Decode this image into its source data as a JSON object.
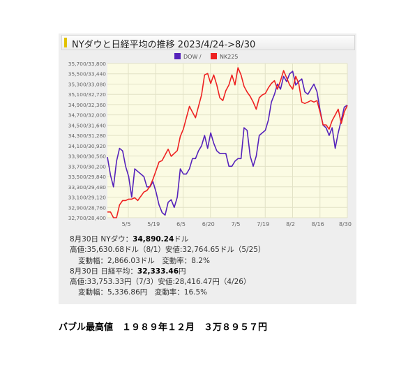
{
  "header": {
    "title": "NYダウと日経平均の推移 2023/4/24->8/30"
  },
  "chart_data": {
    "type": "line",
    "legend": [
      "DOW /",
      "NK225"
    ],
    "legend_position": "top-center",
    "colors": {
      "dow": "#5522bb",
      "nk225": "#ee2222",
      "plot_bg": "#fbfbe3",
      "grid": "#e2e2c6"
    },
    "y_tick_labels": [
      "35,700/33,800",
      "35,500/33,440",
      "35,300/33,080",
      "35,100/32,720",
      "34,900/32,360",
      "34,700/32,000",
      "34,500/31,640",
      "34,300/31,280",
      "34,100/30,920",
      "33,900/30,560",
      "33,700/30,200",
      "33,500/29,840",
      "33,300/29,480",
      "33,100/29,120",
      "32,900/28,760",
      "32,700/28,400"
    ],
    "dow_ylim": [
      32700,
      35700
    ],
    "nk225_ylim": [
      28400,
      33800
    ],
    "x_tick_labels": [
      "5/5",
      "5/19",
      "6/5",
      "6/20",
      "7/5",
      "7/19",
      "8/2",
      "8/16",
      "8/30"
    ],
    "grid": true,
    "series": [
      {
        "name": "DOW",
        "values": [
          33880,
          33530,
          33300,
          33800,
          34050,
          34000,
          33700,
          33500,
          33100,
          33650,
          33600,
          33550,
          33500,
          33300,
          33300,
          33400,
          33200,
          32950,
          32800,
          32750,
          33000,
          33050,
          32900,
          33100,
          33650,
          33550,
          33550,
          33650,
          33850,
          33850,
          34000,
          34100,
          34300,
          34050,
          34350,
          34150,
          34000,
          33950,
          33950,
          33950,
          33700,
          33700,
          33800,
          33850,
          33850,
          34450,
          34400,
          33900,
          33700,
          33900,
          34300,
          34350,
          34400,
          34600,
          34950,
          35100,
          35300,
          35200,
          35450,
          35350,
          35500,
          35550,
          35280,
          35350,
          35400,
          35150,
          35100,
          35200,
          35300,
          35150,
          34800,
          34500,
          34450,
          34300,
          34450,
          34050,
          34350,
          34600,
          34850,
          34890
        ]
      },
      {
        "name": "NK225",
        "values": [
          28600,
          28600,
          28400,
          28400,
          28850,
          29000,
          29000,
          29050,
          29050,
          29100,
          29000,
          29150,
          29300,
          29350,
          29500,
          29750,
          30050,
          30350,
          30400,
          30600,
          30800,
          30550,
          30650,
          30750,
          31250,
          31500,
          31900,
          32300,
          32100,
          31900,
          32300,
          32700,
          33400,
          33450,
          33100,
          33400,
          33050,
          32600,
          32500,
          32850,
          33050,
          33400,
          33050,
          33650,
          33400,
          33000,
          32800,
          32650,
          32450,
          32200,
          32600,
          32700,
          32750,
          32950,
          33100,
          33200,
          32900,
          33200,
          33550,
          33300,
          33050,
          32900,
          33350,
          33100,
          32450,
          32400,
          32450,
          32500,
          32450,
          32500,
          32100,
          31650,
          31650,
          31500,
          31800,
          32000,
          32200,
          31700,
          32100,
          32333
        ]
      }
    ]
  },
  "stats": {
    "dow_date": "8月30日 NYダウ：",
    "dow_value": "34,890.24",
    "dow_unit": "ドル",
    "dow_range": "高値:35,630.68ドル（8/1）安値:32,764.65ドル（5/25）",
    "dow_change": "変動幅：2,866.03ドル　変動率：8.2%",
    "nk_date": "8月30日 日経平均：",
    "nk_value": "32,333.46",
    "nk_unit": "円",
    "nk_range": "高値:33,753.33円（7/3）安値:28,416.47円（4/26）",
    "nk_change": "変動幅：5,336.86円　変動率：16.5%"
  },
  "footer": {
    "text": "バブル最高値　１９８９年１２月　３万８９５７円"
  }
}
